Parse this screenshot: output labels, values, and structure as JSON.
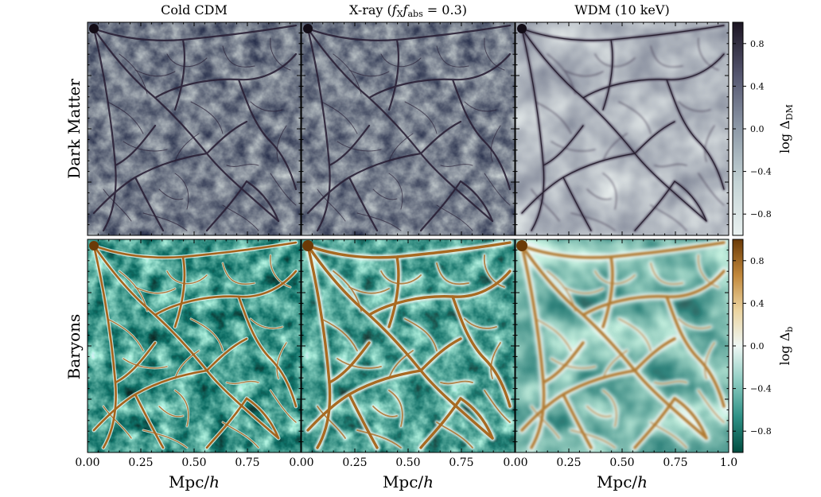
{
  "columns": [
    {
      "title": "Cold CDM",
      "title_rich": null
    },
    {
      "title": "X-ray (f_X f_abs = 0.3)",
      "title_rich": {
        "pre": "X-ray (",
        "f1": "f",
        "s1": "X",
        "f2": "f",
        "s2": "abs",
        "post": " = 0.3)"
      }
    },
    {
      "title": "WDM (10 keV)",
      "title_rich": null
    }
  ],
  "rows": [
    {
      "label": "Dark Matter",
      "colorbar": {
        "label_main": "log Δ",
        "label_sub": "DM",
        "ticks": [
          "0.8",
          "0.4",
          "0.0",
          "−0.4",
          "−0.8"
        ],
        "tick_values": [
          0.8,
          0.4,
          0.0,
          -0.4,
          -0.8
        ],
        "range": [
          -1,
          1
        ],
        "colors": [
          "#e9f1f0",
          "#c4d3d5",
          "#8e9aa8",
          "#555670",
          "#1c1522"
        ]
      }
    },
    {
      "label": "Baryons",
      "colorbar": {
        "label_main": "log Δ",
        "label_sub": "b",
        "ticks": [
          "0.8",
          "0.4",
          "0.0",
          "−0.4",
          "−0.8"
        ],
        "tick_values": [
          0.8,
          0.4,
          0.0,
          -0.4,
          -0.8
        ],
        "range": [
          -1,
          1
        ],
        "colors": [
          "#004d40",
          "#2e9186",
          "#8ccbc1",
          "#eef7f4",
          "#ecd4a0",
          "#c1873a",
          "#6b3a07"
        ]
      }
    }
  ],
  "x_axis": {
    "label_main": "Mpc/",
    "label_italic": "h",
    "ticks_first_panels": [
      "0.00",
      "0.25",
      "0.50",
      "0.75",
      "0.00"
    ],
    "ticks_last_panel": [
      "0.00",
      "0.25",
      "0.50",
      "0.75",
      "1.0"
    ],
    "tick_values": [
      0,
      0.25,
      0.5,
      0.75,
      1.0
    ]
  },
  "colors": {
    "dm_background": "#e3ecec",
    "dm_filament": "#241a2c",
    "baryon_background": "#4f9e94",
    "baryon_void": "#1e7b70",
    "baryon_sheet": "#ddf0ea",
    "baryon_filament": "#b06f22"
  }
}
